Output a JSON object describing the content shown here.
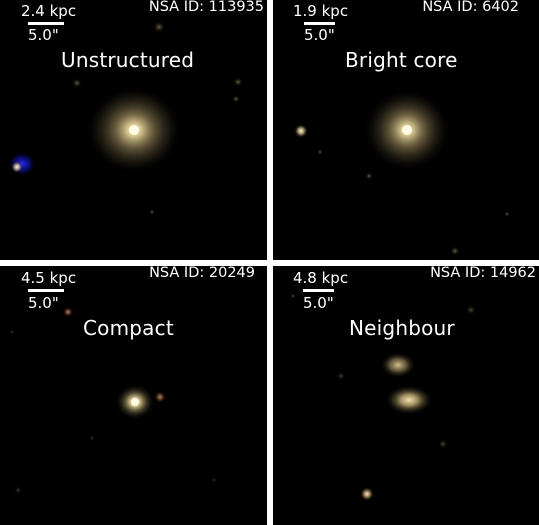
{
  "colors": {
    "background": "#000000",
    "divider": "#ffffff",
    "text": "#ffffff",
    "galaxy_core": "#fff4c8",
    "galaxy_halo": "#c8b47a",
    "blue_object": "#1a1ad0"
  },
  "panels": [
    {
      "scale_label": "2.4 kpc",
      "arcsec_label": "5.0\"",
      "nsa_id": "NSA ID: 113935",
      "class_label": "Unstructured"
    },
    {
      "scale_label": "1.9 kpc",
      "arcsec_label": "5.0\"",
      "nsa_id": "NSA ID: 6402",
      "class_label": "Bright core"
    },
    {
      "scale_label": "4.5 kpc",
      "arcsec_label": "5.0\"",
      "nsa_id": "NSA ID: 20249",
      "class_label": "Compact"
    },
    {
      "scale_label": "4.8 kpc",
      "arcsec_label": "5.0\"",
      "nsa_id": "NSA ID: 14962",
      "class_label": "Neighbour"
    }
  ]
}
